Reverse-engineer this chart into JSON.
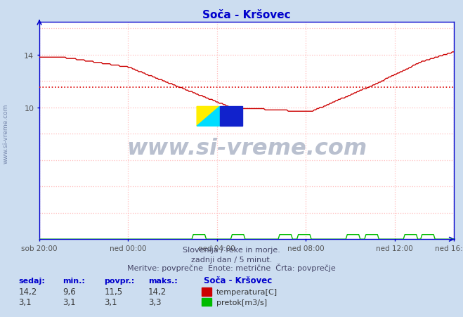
{
  "title": "Soča - Kršovec",
  "title_color": "#0000cc",
  "bg_color": "#ccddf0",
  "plot_bg_color": "#ffffff",
  "grid_color": "#ffbbbb",
  "axis_color": "#0000cc",
  "x_labels": [
    "sob 20:00",
    "ned 00:00",
    "ned 04:00",
    "ned 08:00",
    "ned 12:00",
    "ned 16:00"
  ],
  "x_ticks_norm": [
    0,
    72,
    144,
    216,
    288,
    336
  ],
  "x_total": 336,
  "y_min": 0,
  "y_max": 16.5,
  "y_ticks": [
    10,
    14
  ],
  "avg_line_value": 11.5,
  "avg_line_color": "#dd0000",
  "temp_color": "#cc0000",
  "flow_color": "#00bb00",
  "watermark_text": "www.si-vreme.com",
  "watermark_color": "#1a3060",
  "watermark_alpha": 0.3,
  "footnote_color": "#444466",
  "footnote1": "Slovenija / reke in morje.",
  "footnote2": "zadnji dan / 5 minut.",
  "footnote3": "Meritve: povprečne  Enote: metrične  Črta: povprečje",
  "legend_title": "Soča - Kršovec",
  "legend_labels": [
    "temperatura[C]",
    "pretok[m3/s]"
  ],
  "legend_colors": [
    "#cc0000",
    "#00bb00"
  ],
  "table_headers": [
    "sedaj:",
    "min.:",
    "povpr.:",
    "maks.:"
  ],
  "table_temp": [
    "14,2",
    "9,6",
    "11,5",
    "14,2"
  ],
  "table_flow": [
    "3,1",
    "3,1",
    "3,1",
    "3,3"
  ],
  "side_label": "www.si-vreme.com",
  "side_label_color": "#334477"
}
